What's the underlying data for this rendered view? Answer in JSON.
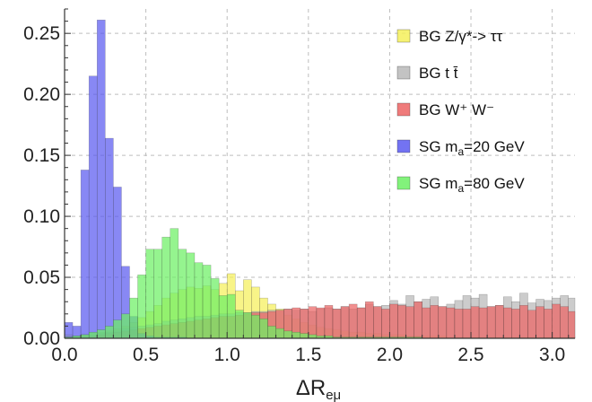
{
  "chart_data": {
    "type": "bar",
    "title": "",
    "xlabel": "ΔR",
    "xlabel_sub": "eμ",
    "ylabel": "",
    "xlim": [
      0.0,
      3.14
    ],
    "ylim": [
      0.0,
      0.27
    ],
    "bin_width": 0.05,
    "x_ticks": [
      "0.0",
      "0.5",
      "1.0",
      "1.5",
      "2.0",
      "2.5",
      "3.0"
    ],
    "y_ticks": [
      "0.00",
      "0.05",
      "0.10",
      "0.15",
      "0.20",
      "0.25"
    ],
    "grid": true,
    "legend_position": "top-right",
    "series": [
      {
        "name": "BG Z/γ*-> ττ",
        "color": "#f5f05a",
        "values": [
          0.003,
          0.002,
          0.003,
          0.004,
          0.005,
          0.006,
          0.008,
          0.01,
          0.013,
          0.017,
          0.022,
          0.027,
          0.033,
          0.037,
          0.04,
          0.042,
          0.041,
          0.043,
          0.04,
          0.045,
          0.053,
          0.039,
          0.048,
          0.042,
          0.033,
          0.028,
          0.024,
          0.019,
          0.016,
          0.013,
          0.011,
          0.009,
          0.008,
          0.007,
          0.006,
          0.005,
          0.005,
          0.004,
          0.004,
          0.003,
          0.003,
          0.003,
          0.002,
          0.002,
          0.002,
          0.002,
          0.002,
          0.001,
          0.001,
          0.001,
          0.001,
          0.001,
          0.001,
          0.001,
          0.001,
          0.001,
          0.001,
          0.001,
          0.001,
          0.001,
          0.001,
          0.001,
          0.001
        ]
      },
      {
        "name": "BG t t̄",
        "color": "#b8b8b8",
        "values": [
          0.001,
          0.002,
          0.002,
          0.003,
          0.004,
          0.005,
          0.006,
          0.008,
          0.009,
          0.01,
          0.011,
          0.012,
          0.014,
          0.015,
          0.016,
          0.017,
          0.018,
          0.018,
          0.019,
          0.02,
          0.02,
          0.021,
          0.021,
          0.022,
          0.022,
          0.023,
          0.023,
          0.024,
          0.023,
          0.024,
          0.022,
          0.024,
          0.025,
          0.024,
          0.026,
          0.024,
          0.025,
          0.028,
          0.026,
          0.027,
          0.031,
          0.028,
          0.035,
          0.03,
          0.032,
          0.034,
          0.026,
          0.028,
          0.031,
          0.035,
          0.033,
          0.036,
          0.026,
          0.027,
          0.034,
          0.03,
          0.037,
          0.029,
          0.032,
          0.031,
          0.033,
          0.035,
          0.033
        ]
      },
      {
        "name": "BG W⁺ W⁻",
        "color": "#ec6464",
        "values": [
          0.001,
          0.001,
          0.002,
          0.002,
          0.003,
          0.004,
          0.005,
          0.006,
          0.007,
          0.008,
          0.009,
          0.01,
          0.011,
          0.012,
          0.013,
          0.014,
          0.015,
          0.016,
          0.017,
          0.018,
          0.018,
          0.019,
          0.02,
          0.021,
          0.021,
          0.022,
          0.023,
          0.024,
          0.025,
          0.024,
          0.026,
          0.025,
          0.027,
          0.024,
          0.026,
          0.028,
          0.025,
          0.03,
          0.026,
          0.024,
          0.028,
          0.027,
          0.026,
          0.03,
          0.025,
          0.027,
          0.026,
          0.025,
          0.024,
          0.024,
          0.026,
          0.025,
          0.026,
          0.027,
          0.025,
          0.024,
          0.027,
          0.023,
          0.026,
          0.024,
          0.028,
          0.026,
          0.022
        ]
      },
      {
        "name": "SG m_a=20 GeV",
        "color": "#5a5af0",
        "values": [
          0.013,
          0.01,
          0.138,
          0.215,
          0.261,
          0.164,
          0.124,
          0.059,
          0.018,
          0.004,
          0.002,
          0.001,
          0.001,
          0.001,
          0.001,
          0.0,
          0.0,
          0.0,
          0.0,
          0.0,
          0.0,
          0.0,
          0.0,
          0.0,
          0.0,
          0.0,
          0.0,
          0.0,
          0.0,
          0.0,
          0.0,
          0.0,
          0.0,
          0.0,
          0.0,
          0.0,
          0.0,
          0.0,
          0.0,
          0.0,
          0.0,
          0.0,
          0.0,
          0.0,
          0.0,
          0.0,
          0.0,
          0.0,
          0.0,
          0.0,
          0.0,
          0.0,
          0.0,
          0.0,
          0.0,
          0.0,
          0.0,
          0.0,
          0.0,
          0.0,
          0.0,
          0.0,
          0.0
        ]
      },
      {
        "name": "SG m_a=80 GeV",
        "color": "#6cf064",
        "values": [
          0.001,
          0.002,
          0.003,
          0.005,
          0.007,
          0.01,
          0.015,
          0.02,
          0.033,
          0.052,
          0.073,
          0.073,
          0.083,
          0.09,
          0.073,
          0.07,
          0.062,
          0.06,
          0.049,
          0.035,
          0.036,
          0.023,
          0.021,
          0.019,
          0.016,
          0.01,
          0.008,
          0.006,
          0.005,
          0.004,
          0.003,
          0.002,
          0.002,
          0.001,
          0.001,
          0.001,
          0.001,
          0.001,
          0.001,
          0.001,
          0.001,
          0.001,
          0.001,
          0.001,
          0.0,
          0.0,
          0.0,
          0.0,
          0.0,
          0.0,
          0.0,
          0.0,
          0.0,
          0.0,
          0.0,
          0.0,
          0.0,
          0.0,
          0.0,
          0.0,
          0.0,
          0.0,
          0.0
        ]
      }
    ]
  }
}
